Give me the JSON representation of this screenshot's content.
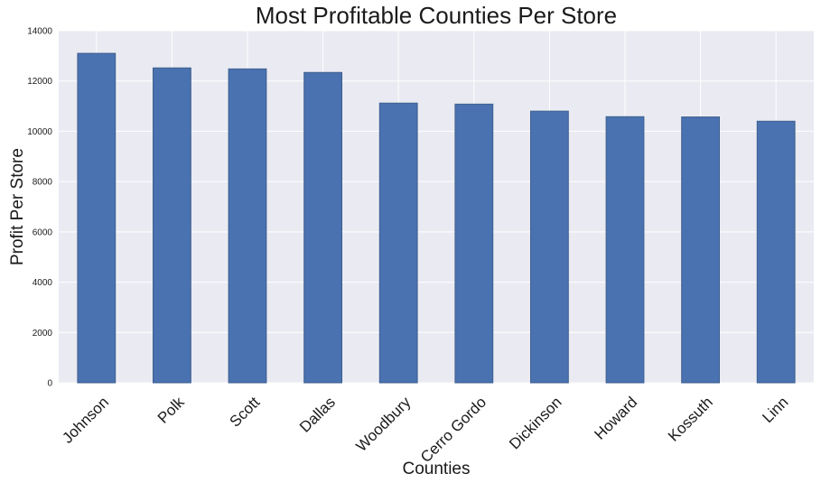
{
  "chart_data": {
    "type": "bar",
    "title": "Most Profitable Counties Per Store",
    "xlabel": "Counties",
    "ylabel": "Profit Per Store",
    "categories": [
      "Johnson",
      "Polk",
      "Scott",
      "Dallas",
      "Woodbury",
      "Cerro Gordo",
      "Dickinson",
      "Howard",
      "Kossuth",
      "Linn"
    ],
    "values": [
      13100,
      12520,
      12480,
      12340,
      11120,
      11080,
      10800,
      10580,
      10570,
      10400
    ],
    "ylim": [
      0,
      14000
    ],
    "yticks": [
      0,
      2000,
      4000,
      6000,
      8000,
      10000,
      12000,
      14000
    ],
    "grid": true,
    "legend": "none",
    "colors": {
      "bar_fill": "#4a72b0",
      "bar_edge": "#3e5f8f",
      "plot_background": "#eaeaf2",
      "grid": "#ffffff"
    }
  }
}
